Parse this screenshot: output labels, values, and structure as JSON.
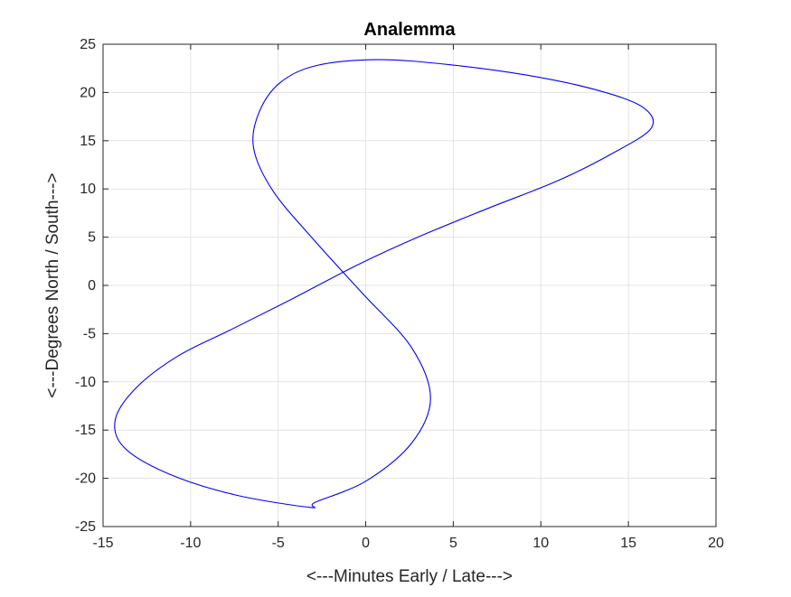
{
  "chart_data": {
    "type": "line",
    "title": "Analemma",
    "xlabel": "<---Minutes Early / Late--->",
    "ylabel": "<---Degrees North / South--->",
    "xlim": [
      -15,
      20
    ],
    "ylim": [
      -25,
      25
    ],
    "xticks": [
      -15,
      -10,
      -5,
      0,
      5,
      10,
      15,
      20
    ],
    "yticks": [
      -25,
      -20,
      -15,
      -10,
      -5,
      0,
      5,
      10,
      15,
      20,
      25
    ],
    "grid": true,
    "box": true,
    "series": [
      {
        "color": "#0000ff",
        "x": [
          -3.2,
          -7.5,
          -11.3,
          -13.8,
          -14.3,
          -13.1,
          -10.7,
          -7.6,
          -4.2,
          -0.5,
          3.1,
          7.0,
          10.9,
          14.0,
          16.3,
          15.8,
          13.1,
          9.2,
          4.7,
          0.7,
          -2.8,
          -4.9,
          -6.1,
          -6.4,
          -5.3,
          -3.0,
          -0.2,
          2.6,
          3.7,
          2.6,
          0.0,
          -2.9
        ],
        "y": [
          -23.0,
          -21.7,
          -19.5,
          -16.8,
          -13.9,
          -10.6,
          -7.3,
          -4.5,
          -1.4,
          2.1,
          5.1,
          8.0,
          10.8,
          13.6,
          16.3,
          18.5,
          20.3,
          21.8,
          22.9,
          23.4,
          22.8,
          21.0,
          17.9,
          14.2,
          9.8,
          4.8,
          -0.8,
          -6.4,
          -11.7,
          -16.4,
          -20.3,
          -22.5
        ]
      }
    ]
  }
}
